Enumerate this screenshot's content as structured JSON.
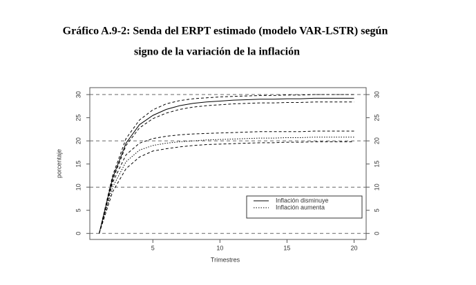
{
  "chart_data": {
    "type": "line",
    "title": [
      "Gráfico A.9-2: Senda del ERPT estimado (modelo VAR-LSTR) según",
      "signo de la variación de la inflación"
    ],
    "x_label": "Trimestres",
    "y_label": "porcentaje",
    "x": [
      1,
      2,
      3,
      4,
      5,
      6,
      7,
      8,
      9,
      10,
      11,
      12,
      13,
      14,
      15,
      16,
      17,
      18,
      19,
      20
    ],
    "series": [
      {
        "name": "Inflación disminuye",
        "color": "#000000",
        "style": "solid",
        "values": [
          0,
          12,
          19.5,
          23.5,
          25.5,
          26.8,
          27.6,
          28.1,
          28.4,
          28.6,
          28.8,
          28.9,
          29.0,
          29.0,
          29.1,
          29.1,
          29.2,
          29.2,
          29.2,
          29.2
        ]
      },
      {
        "color": "#000000",
        "style": "dashed",
        "values": [
          0,
          12.5,
          20.5,
          24.5,
          26.7,
          28.0,
          28.7,
          29.1,
          29.3,
          29.5,
          29.6,
          29.7,
          29.8,
          29.8,
          29.9,
          29.9,
          30,
          30,
          30,
          30
        ]
      },
      {
        "color": "#000000",
        "style": "dashed",
        "values": [
          0,
          11.5,
          19,
          22.8,
          24.8,
          26,
          26.8,
          27.3,
          27.6,
          27.8,
          28,
          28.1,
          28.2,
          28.2,
          28.3,
          28.3,
          28.4,
          28.4,
          28.4,
          28.4
        ]
      },
      {
        "name": "Inflación aumenta",
        "color": "#000000",
        "style": "dotted",
        "values": [
          0,
          10,
          15.5,
          18,
          19,
          19.5,
          19.8,
          20,
          20.2,
          20.3,
          20.4,
          20.5,
          20.6,
          20.6,
          20.7,
          20.7,
          20.8,
          20.8,
          20.8,
          20.8
        ]
      },
      {
        "color": "#000000",
        "style": "dashed",
        "values": [
          0,
          11,
          17,
          19.5,
          20.5,
          21,
          21.3,
          21.5,
          21.6,
          21.7,
          21.8,
          21.9,
          22,
          22,
          22,
          22,
          22.1,
          22.1,
          22.1,
          22.1
        ]
      },
      {
        "color": "#000000",
        "style": "dashed",
        "values": [
          0,
          9,
          14,
          16.5,
          17.8,
          18.3,
          18.7,
          19,
          19.2,
          19.3,
          19.4,
          19.5,
          19.6,
          19.6,
          19.7,
          19.7,
          19.8,
          19.8,
          19.8,
          19.8
        ]
      }
    ],
    "xlim": [
      0.3,
      20.9
    ],
    "ylim": [
      -1.3,
      31.5
    ],
    "xticks": [
      5,
      10,
      15,
      20
    ],
    "yticks": [
      0,
      5,
      10,
      15,
      20,
      25,
      30
    ],
    "hlines": [
      0,
      10,
      20,
      30
    ],
    "legend": "bottom-right",
    "right_axis": true
  }
}
